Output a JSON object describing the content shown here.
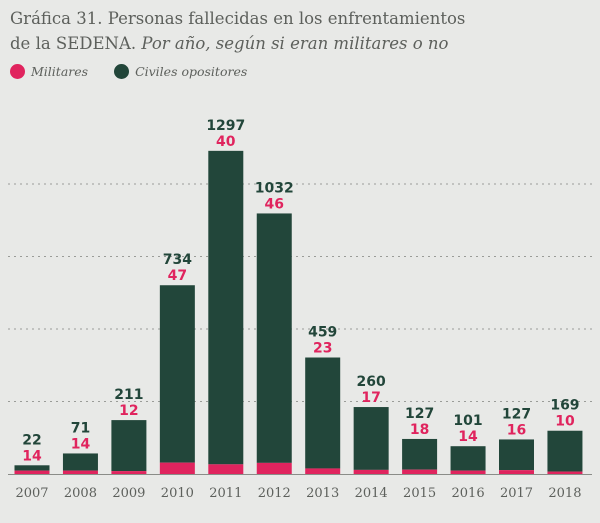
{
  "title": {
    "main": "Gráfica 31. Personas fallecidas en los enfrentamientos",
    "line2": "de la SEDENA.",
    "subtitle": "Por año, según si eran militares o no"
  },
  "colors": {
    "militares": "#e0245e",
    "civiles": "#22463a",
    "background": "#e8e9e7",
    "axis": "#8a8c88"
  },
  "chart_data": {
    "type": "bar",
    "stacked": true,
    "categories": [
      "2007",
      "2008",
      "2009",
      "2010",
      "2011",
      "2012",
      "2013",
      "2014",
      "2015",
      "2016",
      "2017",
      "2018"
    ],
    "series": [
      {
        "name": "Militares",
        "values": [
          14,
          14,
          12,
          47,
          40,
          46,
          23,
          17,
          18,
          14,
          16,
          10
        ]
      },
      {
        "name": "Civiles opositores",
        "values": [
          22,
          71,
          211,
          734,
          1297,
          1032,
          459,
          260,
          127,
          101,
          127,
          169
        ]
      }
    ],
    "ylim": [
      0,
      1400
    ],
    "gridlines": [
      300,
      600,
      900,
      1200
    ],
    "grid": "dotted horizontal",
    "legend": "top-left"
  }
}
